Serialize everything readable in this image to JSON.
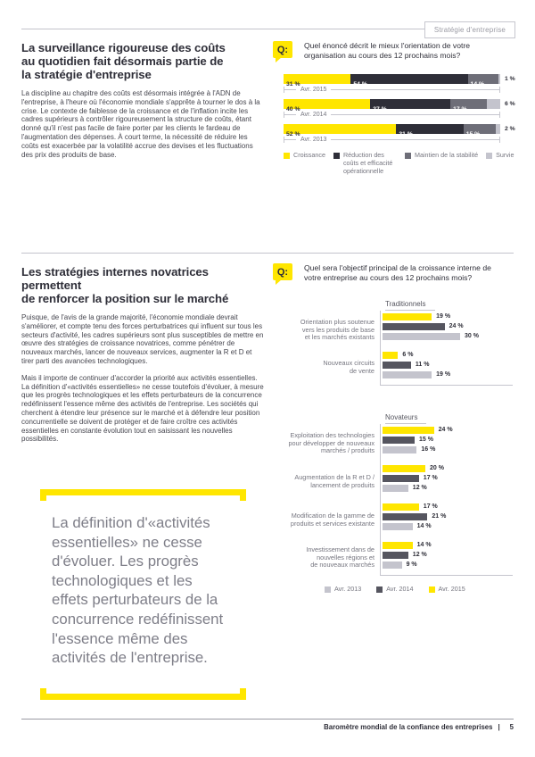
{
  "colors": {
    "yellow": "#FFE600",
    "ink": "#2E2E38",
    "mid_gray": "#6E6E78",
    "dark_gray_bar": "#55555F",
    "light_gray": "#C4C4CD",
    "text_gray": "#75757F"
  },
  "header": {
    "tag": "Stratégie d'entreprise"
  },
  "section1": {
    "heading_lines": [
      "La surveillance rigoureuse des coûts",
      "au quotidien fait désormais partie de",
      "la stratégie d'entreprise"
    ],
    "body": "La discipline au chapitre des coûts est désormais intégrée à l'ADN de l'entreprise, à l'heure où l'économie mondiale s'apprête à tourner le dos à la crise. Le contexte de faiblesse de la croissance et de l'inflation incite les cadres supérieurs à contrôler rigoureusement la structure de coûts, étant donné qu'il n'est pas facile de faire porter par les clients le fardeau de l'augmentation des dépenses. À court terme, la nécessité de réduire les coûts est exacerbée par la volatilité accrue des devises et les fluctuations des prix des produits de base.",
    "q_icon": "Q:",
    "question_lines": [
      "Quel énoncé décrit le mieux l'orientation de votre",
      "organisation au cours des 12 prochains mois?"
    ]
  },
  "section2": {
    "heading_lines": [
      "Les stratégies internes novatrices permettent",
      "de renforcer la position sur le marché"
    ],
    "body1": "Puisque, de l'avis de la grande majorité, l'économie mondiale devrait s'améliorer, et compte tenu des forces perturbatrices qui influent sur tous les secteurs d'activité, les cadres supérieurs sont plus susceptibles de mettre en œuvre des stratégies de croissance novatrices, comme pénétrer de nouveaux marchés, lancer de nouveaux services, augmenter la R et D et tirer parti des avancées technologiques.",
    "body2": "Mais il importe de continuer d'accorder la priorité aux activités essentielles. La définition d'«activités essentielles» ne cesse toutefois d'évoluer, à mesure que les progrès technologiques et les effets perturbateurs de la concurrence redéfinissent l'essence même des activités de l'entreprise. Les sociétés qui cherchent à étendre leur présence sur le marché et à défendre leur position concurrentielle se doivent de protéger et de faire croître ces activités essentielles en constante évolution tout en saisissant les nouvelles possibilités.",
    "q_icon": "Q:",
    "question_lines": [
      "Quel sera l'objectif principal de la croissance interne de",
      "votre entreprise au cours des 12 prochains mois?"
    ]
  },
  "pull_quote": {
    "lines": [
      "La définition d'«activités",
      "essentielles» ne cesse",
      "d'évoluer. Les progrès",
      "technologiques et les",
      "effets perturbateurs de la",
      "concurrence redéfinissent",
      "l'essence même des",
      "activités de l'entreprise."
    ]
  },
  "footer": {
    "title": "Baromètre mondial de la confiance des entreprises",
    "separator": "|",
    "page": "5"
  },
  "chart_data": [
    {
      "type": "bar",
      "orientation": "horizontal-stacked",
      "title": "Quel énoncé décrit le mieux l'orientation de votre organisation au cours des 12 prochains mois?",
      "categories": [
        "Avr. 2015",
        "Avr. 2014",
        "Avr. 2013"
      ],
      "series": [
        {
          "name": "Croissance",
          "color": "#FFE600",
          "values": [
            31,
            40,
            52
          ]
        },
        {
          "name": "Réduction des coûts et efficacité opérationnelle",
          "color": "#2E2E38",
          "values": [
            54,
            37,
            31
          ]
        },
        {
          "name": "Maintien de la stabilité",
          "color": "#6E6E78",
          "values": [
            14,
            17,
            15
          ]
        },
        {
          "name": "Survie",
          "color": "#C4C4CD",
          "values": [
            1,
            6,
            2
          ]
        }
      ],
      "unit": "%",
      "xlim": [
        0,
        100
      ],
      "legend_position": "bottom"
    },
    {
      "type": "bar",
      "orientation": "horizontal-grouped",
      "title": "Quel sera l'objectif principal de la croissance interne de votre entreprise au cours des 12 prochains mois?",
      "series_names": [
        "Avr. 2015",
        "Avr. 2014",
        "Avr. 2013"
      ],
      "series_colors": {
        "Avr. 2015": "#FFE600",
        "Avr. 2014": "#55555F",
        "Avr. 2013": "#C4C4CD"
      },
      "groups": [
        {
          "title": "Traditionnels",
          "rows": [
            {
              "label_lines": [
                "Orientation plus soutenue",
                "vers les produits de base",
                "et les marchés existants"
              ],
              "values": {
                "Avr. 2015": 19,
                "Avr. 2014": 24,
                "Avr. 2013": 30
              }
            },
            {
              "label_lines": [
                "Nouveaux circuits",
                "de vente"
              ],
              "values": {
                "Avr. 2015": 6,
                "Avr. 2014": 11,
                "Avr. 2013": 19
              }
            }
          ]
        },
        {
          "title": "Novateurs",
          "rows": [
            {
              "label_lines": [
                "Exploitation des technologies",
                "pour développer de nouveaux",
                "marchés / produits"
              ],
              "values": {
                "Avr. 2015": 24,
                "Avr. 2014": 15,
                "Avr. 2013": 16
              }
            },
            {
              "label_lines": [
                "Augmentation de la R et D /",
                "lancement de produits"
              ],
              "values": {
                "Avr. 2015": 20,
                "Avr. 2014": 17,
                "Avr. 2013": 12
              }
            },
            {
              "label_lines": [
                "Modification de la gamme de",
                "produits et services existante"
              ],
              "values": {
                "Avr. 2015": 17,
                "Avr. 2014": 21,
                "Avr. 2013": 14
              }
            },
            {
              "label_lines": [
                "Investissement dans de",
                "nouvelles régions et",
                "de nouveaux marchés"
              ],
              "values": {
                "Avr. 2015": 14,
                "Avr. 2014": 12,
                "Avr. 2013": 9
              }
            }
          ]
        }
      ],
      "legend": [
        {
          "label": "Avr. 2013",
          "color": "#C4C4CD"
        },
        {
          "label": "Avr. 2014",
          "color": "#55555F"
        },
        {
          "label": "Avr. 2015",
          "color": "#FFE600"
        }
      ],
      "unit": "%",
      "legend_position": "bottom"
    }
  ]
}
